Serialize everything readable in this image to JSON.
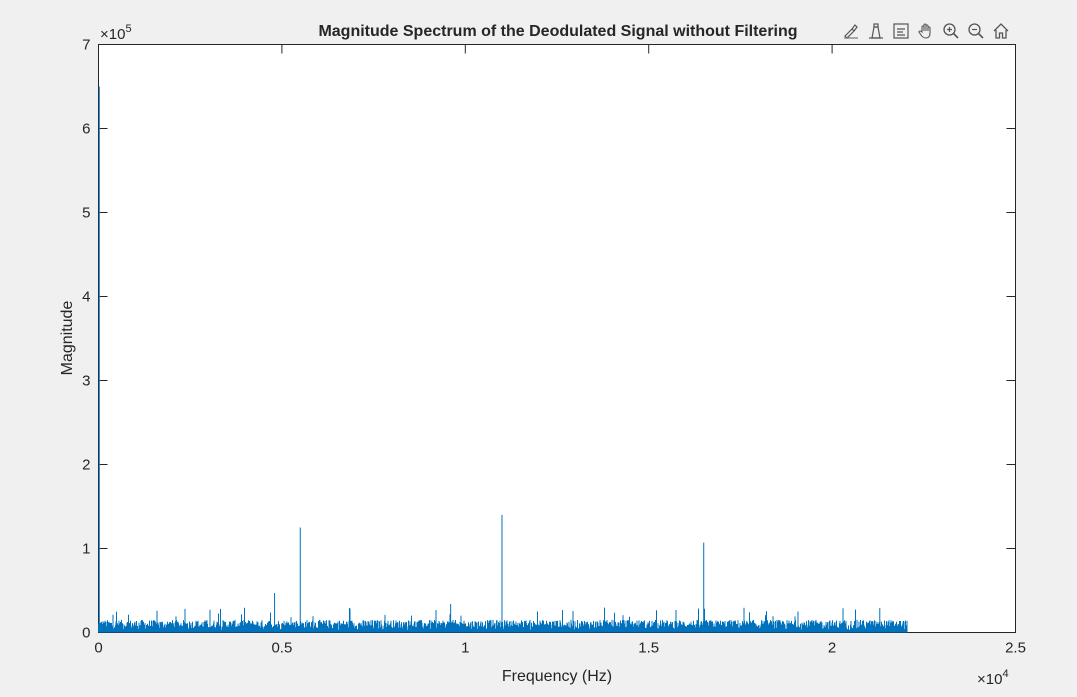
{
  "chart_data": {
    "type": "line",
    "title": "Magnitude Spectrum of the Deodulated Signal without Filtering",
    "xlabel": "Frequency (Hz)",
    "ylabel": "Magnitude",
    "xlim": [
      0,
      25000
    ],
    "ylim": [
      0,
      700000
    ],
    "x_ticks": [
      0,
      0.5,
      1,
      1.5,
      2,
      2.5
    ],
    "x_tick_labels": [
      "0",
      "0.5",
      "1",
      "1.5",
      "2",
      "2.5"
    ],
    "y_ticks": [
      0,
      1,
      2,
      3,
      4,
      5,
      6,
      7
    ],
    "y_tick_labels": [
      "0",
      "1",
      "2",
      "3",
      "4",
      "5",
      "6",
      "7"
    ],
    "x_exponent_label": "×10",
    "x_exponent_power": "4",
    "y_exponent_label": "×10",
    "y_exponent_power": "5",
    "grid": false,
    "legend": "none",
    "series_color": "#0072BD",
    "noise_floor": {
      "x_start": 0,
      "x_end": 22050,
      "baseline_max": 15000
    },
    "peaks": [
      {
        "x": 0,
        "y": 650000
      },
      {
        "x": 4800,
        "y": 47000
      },
      {
        "x": 5500,
        "y": 125000
      },
      {
        "x": 11000,
        "y": 140000
      },
      {
        "x": 16500,
        "y": 107000
      },
      {
        "x": 9600,
        "y": 34000
      },
      {
        "x": 21300,
        "y": 29000
      }
    ]
  },
  "toolbar": {
    "icons": [
      "brush-icon",
      "data-tips-icon",
      "restore-view-icon",
      "pan-icon",
      "zoom-in-icon",
      "zoom-out-icon",
      "home-icon"
    ]
  }
}
